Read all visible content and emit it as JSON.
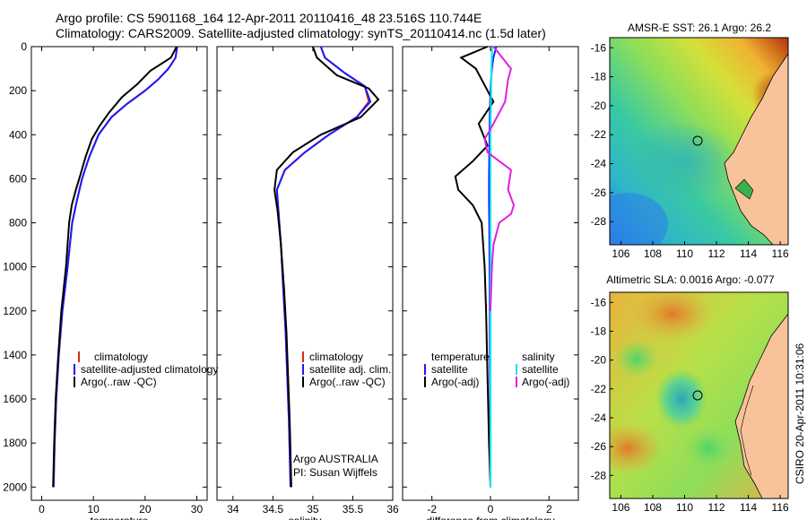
{
  "header": {
    "line1": "Argo profile: CS 5901168_164 12-Apr-2011 20110416_48 23.516S 110.744E",
    "line2": "Climatology: CARS2009. Satellite-adjusted climatology: synTS_20110414.nc (1.5d later)"
  },
  "timestamp": "CSIRO 20-Apr-2011 10:31:06",
  "colors": {
    "climatology": "#d32b1e",
    "satellite": "#1a1aff",
    "argo": "#000000",
    "sat_salinity": "#00e5ee",
    "argo_salinity": "#e020e0"
  },
  "chart_data": [
    {
      "type": "line",
      "xlabel": "temperature",
      "xlim": [
        -2,
        32
      ],
      "ylim": [
        2060,
        0
      ],
      "xticks": [
        0,
        10,
        20,
        30
      ],
      "yticks": [
        0,
        200,
        400,
        600,
        800,
        1000,
        1200,
        1400,
        1600,
        1800,
        2000
      ],
      "legend": [
        "climatology",
        "satellite-adjusted climatology",
        "Argo(..raw -QC)"
      ],
      "series": [
        {
          "name": "climatology",
          "color": "#d32b1e",
          "x": [
            26.2,
            25.9,
            24.5,
            22.5,
            20.0,
            16.5,
            13.5,
            11.0,
            9.2,
            7.8,
            6.8,
            5.9,
            5.0,
            4.0,
            3.3,
            2.8,
            2.5,
            2.3
          ],
          "y": [
            0,
            50,
            100,
            150,
            200,
            260,
            320,
            400,
            500,
            600,
            700,
            800,
            1000,
            1200,
            1400,
            1600,
            1800,
            2000
          ]
        },
        {
          "name": "satellite-adjusted climatology",
          "color": "#1a1aff",
          "x": [
            26.2,
            25.9,
            24.5,
            22.5,
            20.0,
            16.5,
            13.5,
            11.0,
            9.2,
            7.8,
            6.8,
            5.9,
            5.0,
            4.0,
            3.3,
            2.8,
            2.5,
            2.3
          ],
          "y": [
            0,
            50,
            100,
            150,
            200,
            260,
            320,
            400,
            500,
            600,
            700,
            800,
            1000,
            1200,
            1400,
            1600,
            1800,
            2000
          ]
        },
        {
          "name": "Argo(..raw -QC)",
          "color": "#000000",
          "x": [
            26.1,
            25.0,
            21.0,
            18.5,
            15.5,
            13.0,
            11.2,
            9.7,
            8.5,
            7.5,
            6.6,
            5.8,
            5.3,
            4.7,
            3.8,
            3.2,
            2.7,
            2.4,
            2.2
          ],
          "y": [
            0,
            50,
            110,
            170,
            230,
            300,
            360,
            420,
            500,
            580,
            650,
            720,
            800,
            1000,
            1200,
            1400,
            1600,
            1800,
            2000
          ]
        }
      ]
    },
    {
      "type": "line",
      "xlabel": "salinity",
      "xlim": [
        33.8,
        36.0
      ],
      "ylim": [
        2060,
        0
      ],
      "xticks": [
        34,
        34.5,
        35,
        35.5,
        36
      ],
      "yticks": [
        0,
        200,
        400,
        600,
        800,
        1000,
        1200,
        1400,
        1600,
        1800,
        2000
      ],
      "legend": [
        "climatology",
        "satellite adj. clim.",
        "Argo(..raw -QC)"
      ],
      "annotation": [
        "Argo AUSTRALIA",
        "PI: Susan Wijffels"
      ],
      "series": [
        {
          "name": "climatology",
          "color": "#d32b1e",
          "x": [
            35.1,
            35.15,
            35.4,
            35.65,
            35.7,
            35.55,
            35.2,
            34.9,
            34.65,
            34.55,
            34.57,
            34.6,
            34.63,
            34.66,
            34.68,
            34.7,
            34.72
          ],
          "y": [
            0,
            50,
            120,
            180,
            250,
            320,
            400,
            480,
            560,
            650,
            750,
            900,
            1100,
            1300,
            1500,
            1700,
            2000
          ]
        },
        {
          "name": "satellite adj. clim.",
          "color": "#1a1aff",
          "x": [
            35.1,
            35.15,
            35.4,
            35.65,
            35.72,
            35.55,
            35.2,
            34.9,
            34.65,
            34.55,
            34.57,
            34.6,
            34.63,
            34.66,
            34.68,
            34.7,
            34.72
          ],
          "y": [
            0,
            50,
            120,
            180,
            250,
            320,
            400,
            480,
            560,
            650,
            750,
            900,
            1100,
            1300,
            1500,
            1700,
            2000
          ]
        },
        {
          "name": "Argo(..raw -QC)",
          "color": "#000000",
          "x": [
            35.0,
            35.05,
            35.3,
            35.7,
            35.82,
            35.6,
            35.1,
            34.75,
            34.55,
            34.52,
            34.56,
            34.6,
            34.64,
            34.67,
            34.69,
            34.71,
            34.73
          ],
          "y": [
            0,
            50,
            130,
            190,
            240,
            320,
            400,
            480,
            560,
            650,
            750,
            900,
            1100,
            1300,
            1500,
            1700,
            2000
          ]
        }
      ]
    },
    {
      "type": "line",
      "xlabel": "difference from climatology",
      "xlim": [
        -3,
        3
      ],
      "ylim": [
        2060,
        0
      ],
      "xticks": [
        -2,
        0,
        2
      ],
      "yticks": [
        0,
        200,
        400,
        600,
        800,
        1000,
        1200,
        1400,
        1600,
        1800,
        2000
      ],
      "legend_left": [
        "temperature",
        "satellite",
        "Argo(-adj)"
      ],
      "legend_right": [
        "salinity",
        "satellite",
        "Argo(-adj)"
      ],
      "series": [
        {
          "name": "satellite",
          "color": "#1a1aff",
          "x": [
            0.2,
            0.1,
            0.05,
            0.02,
            0.0,
            -0.02,
            -0.03,
            -0.04,
            -0.05,
            -0.05,
            -0.04,
            -0.03,
            -0.02,
            -0.02,
            -0.01,
            0.0
          ],
          "y": [
            0,
            50,
            100,
            150,
            200,
            300,
            400,
            500,
            600,
            700,
            800,
            1000,
            1200,
            1400,
            1700,
            2000
          ]
        },
        {
          "name": "Argo(-adj)",
          "color": "#000000",
          "x": [
            -0.1,
            -1.0,
            -0.5,
            -0.3,
            0.1,
            -0.4,
            -0.1,
            -0.6,
            -1.2,
            -1.1,
            -0.6,
            -0.3,
            -0.2,
            -0.15,
            -0.1,
            -0.05,
            0.0
          ],
          "y": [
            0,
            50,
            100,
            150,
            250,
            350,
            450,
            520,
            590,
            650,
            720,
            800,
            1000,
            1200,
            1500,
            1800,
            2000
          ]
        },
        {
          "name": "satellite",
          "color": "#00e5ee",
          "x": [
            0.05,
            0.05,
            0.03,
            0.02,
            0.01,
            0.0,
            0.0,
            0.0,
            0.0,
            0.0,
            0.0,
            0.0
          ],
          "y": [
            0,
            50,
            100,
            200,
            300,
            400,
            600,
            800,
            1000,
            1400,
            1800,
            2000
          ]
        },
        {
          "name": "Argo(-adj)",
          "color": "#e020e0",
          "x": [
            0.1,
            0.4,
            0.7,
            0.6,
            0.5,
            0.1,
            -0.2,
            -0.1,
            0.7,
            0.6,
            0.8,
            0.7,
            0.3,
            0.1,
            0.05,
            0.0
          ],
          "y": [
            0,
            50,
            100,
            150,
            250,
            350,
            420,
            480,
            560,
            650,
            720,
            760,
            800,
            900,
            1000,
            1200
          ]
        }
      ]
    },
    {
      "type": "heatmap",
      "title": "AMSR-E SST: 26.1  Argo: 26.2",
      "xlim": [
        105.3,
        116.5
      ],
      "ylim": [
        -29.6,
        -15.3
      ],
      "xticks": [
        106,
        108,
        110,
        112,
        114,
        116
      ],
      "yticks": [
        -16,
        -18,
        -20,
        -22,
        -24,
        -26,
        -28
      ],
      "argo_position": {
        "lon": 110.744,
        "lat": -23.516
      }
    },
    {
      "type": "heatmap",
      "title": "Altimetric SLA: 0.0016  Argo: -0.077",
      "xlim": [
        105.3,
        116.5
      ],
      "ylim": [
        -29.6,
        -15.3
      ],
      "xticks": [
        106,
        108,
        110,
        112,
        114,
        116
      ],
      "yticks": [
        -16,
        -18,
        -20,
        -22,
        -24,
        -26,
        -28
      ],
      "argo_position": {
        "lon": 110.744,
        "lat": -23.516
      }
    }
  ]
}
